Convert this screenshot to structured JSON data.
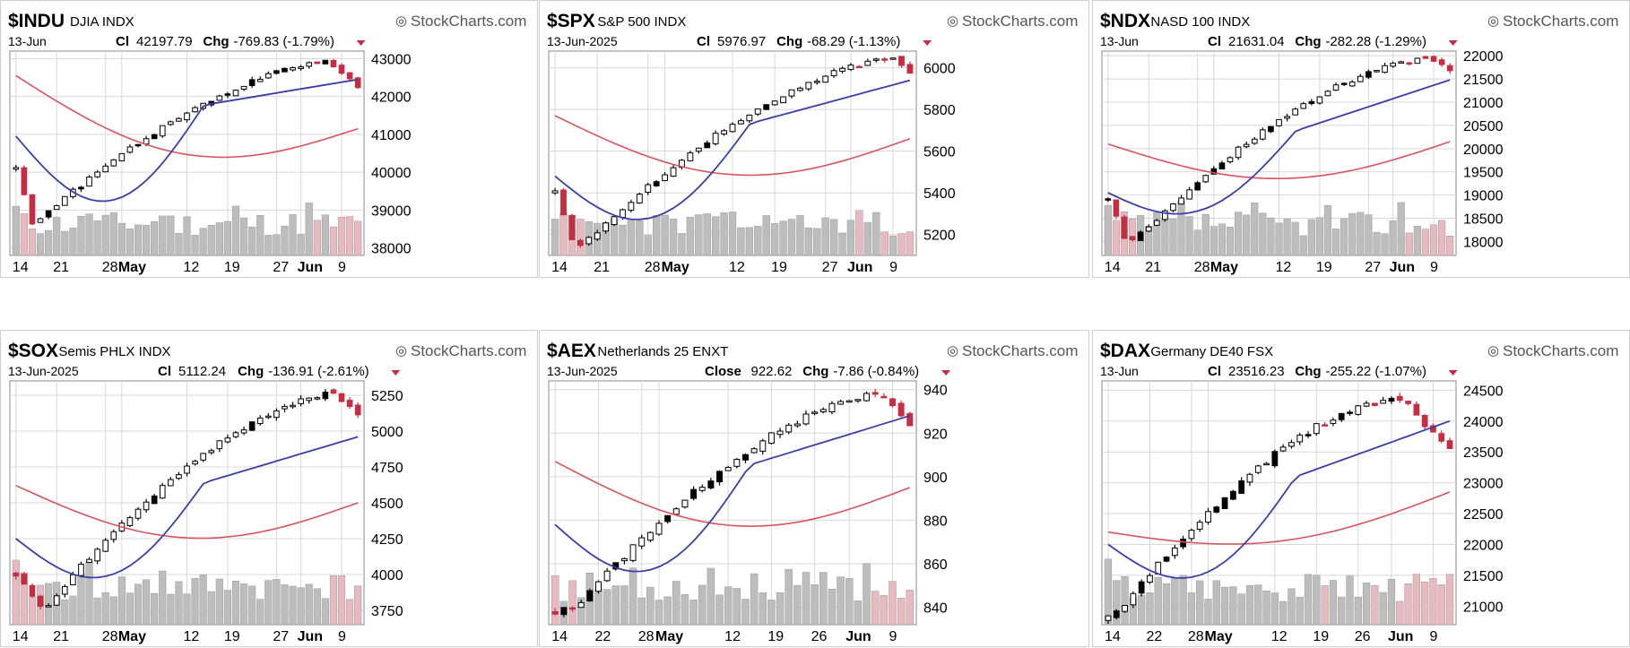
{
  "watermark": "StockCharts.com",
  "colors": {
    "up": "#ffffff",
    "up_stroke": "#000000",
    "down": "#c62d42",
    "flat": "#000000",
    "ma_short": "#3a3fa8",
    "ma_long": "#d9535f",
    "vol_gray": "#bdbdbd",
    "vol_red": "#e8b9bf",
    "grid": "#d8d8d8",
    "chg_arrow": "#c62d42"
  },
  "chart_data": [
    {
      "type": "candlestick",
      "symbol": "$INDU",
      "name": "DJIA",
      "exchange": "INDX",
      "date": "13-Jun",
      "close_label": "Cl",
      "close": "42197.79",
      "chg_label": "Chg",
      "chg": "-769.83 (-1.79%)",
      "y_ticks": [
        "43000",
        "42000",
        "41000",
        "40000",
        "39000",
        "38000"
      ],
      "ylim": [
        37800,
        43200
      ],
      "x_ticks": [
        {
          "label": "14",
          "bold": false
        },
        {
          "label": "21",
          "bold": false
        },
        {
          "label": "28",
          "bold": false
        },
        {
          "label": "May",
          "bold": true
        },
        {
          "label": "12",
          "bold": false
        },
        {
          "label": "19",
          "bold": false
        },
        {
          "label": "27",
          "bold": false
        },
        {
          "label": "Jun",
          "bold": true
        },
        {
          "label": "9",
          "bold": false
        }
      ],
      "x_tick_index": [
        0,
        5,
        11,
        13,
        21,
        26,
        32,
        35,
        40
      ],
      "start": 40100,
      "end": 42200,
      "peak": 42900,
      "peak_frac": 0.92,
      "low": 38600,
      "low_frac": 0.05,
      "ma_short": [
        40950,
        42450
      ],
      "ma_long": [
        42550,
        41150
      ]
    },
    {
      "type": "candlestick",
      "symbol": "$SPX",
      "name": "S&P 500",
      "exchange": "INDX",
      "date": "13-Jun-2025",
      "close_label": "Cl",
      "close": "5976.97",
      "chg_label": "Chg",
      "chg": "-68.29 (-1.13%)",
      "y_ticks": [
        "6000",
        "5800",
        "5600",
        "5400",
        "5200"
      ],
      "ylim": [
        5100,
        6080
      ],
      "x_ticks": [
        {
          "label": "14",
          "bold": false
        },
        {
          "label": "21",
          "bold": false
        },
        {
          "label": "28",
          "bold": false
        },
        {
          "label": "May",
          "bold": true
        },
        {
          "label": "12",
          "bold": false
        },
        {
          "label": "19",
          "bold": false
        },
        {
          "label": "27",
          "bold": false
        },
        {
          "label": "Jun",
          "bold": true
        },
        {
          "label": "9",
          "bold": false
        }
      ],
      "x_tick_index": [
        0,
        5,
        11,
        13,
        21,
        26,
        32,
        35,
        40
      ],
      "start": 5400,
      "end": 5977,
      "peak": 6040,
      "peak_frac": 0.95,
      "low": 5120,
      "low_frac": 0.06,
      "ma_short": [
        5480,
        5940
      ],
      "ma_long": [
        5770,
        5660
      ]
    },
    {
      "type": "candlestick",
      "symbol": "$NDX",
      "name": "NASD 100",
      "exchange": "INDX",
      "date": "13-Jun",
      "close_label": "Cl",
      "close": "21631.04",
      "chg_label": "Chg",
      "chg": "-282.28 (-1.29%)",
      "y_ticks": [
        "22000",
        "21500",
        "21000",
        "20500",
        "20000",
        "19500",
        "19000",
        "18500",
        "18000"
      ],
      "ylim": [
        17700,
        22100
      ],
      "x_ticks": [
        {
          "label": "14",
          "bold": false
        },
        {
          "label": "21",
          "bold": false
        },
        {
          "label": "28",
          "bold": false
        },
        {
          "label": "May",
          "bold": true
        },
        {
          "label": "12",
          "bold": false
        },
        {
          "label": "19",
          "bold": false
        },
        {
          "label": "27",
          "bold": false
        },
        {
          "label": "Jun",
          "bold": true
        },
        {
          "label": "9",
          "bold": false
        }
      ],
      "x_tick_index": [
        0,
        5,
        11,
        13,
        21,
        26,
        32,
        35,
        40
      ],
      "start": 18900,
      "end": 21631,
      "peak": 21950,
      "peak_frac": 0.94,
      "low": 17900,
      "low_frac": 0.06,
      "ma_short": [
        19050,
        21480
      ],
      "ma_long": [
        20100,
        20150
      ]
    },
    {
      "type": "candlestick",
      "symbol": "$SOX",
      "name": "Semis PHLX",
      "exchange": "INDX",
      "date": "13-Jun-2025",
      "close_label": "Cl",
      "close": "5112.24",
      "chg_label": "Chg",
      "chg": "-136.91 (-2.61%)",
      "y_ticks": [
        "5250",
        "5000",
        "4750",
        "4500",
        "4250",
        "4000",
        "3750"
      ],
      "ylim": [
        3650,
        5350
      ],
      "x_ticks": [
        {
          "label": "14",
          "bold": false
        },
        {
          "label": "21",
          "bold": false
        },
        {
          "label": "28",
          "bold": false
        },
        {
          "label": "May",
          "bold": true
        },
        {
          "label": "12",
          "bold": false
        },
        {
          "label": "19",
          "bold": false
        },
        {
          "label": "27",
          "bold": false
        },
        {
          "label": "Jun",
          "bold": true
        },
        {
          "label": "9",
          "bold": false
        }
      ],
      "x_tick_index": [
        0,
        5,
        11,
        13,
        21,
        26,
        32,
        35,
        40
      ],
      "start": 4000,
      "end": 5112,
      "peak": 5260,
      "peak_frac": 0.93,
      "low": 3750,
      "low_frac": 0.08,
      "ma_short": [
        4250,
        4960
      ],
      "ma_long": [
        4620,
        4500
      ]
    },
    {
      "type": "candlestick",
      "symbol": "$AEX",
      "name": "Netherlands 25",
      "exchange": "ENXT",
      "date": "13-Jun-2025",
      "close_label": "Close",
      "close": "922.62",
      "chg_label": "Chg",
      "chg": "-7.86 (-0.84%)",
      "y_ticks": [
        "940",
        "920",
        "900",
        "880",
        "860",
        "840"
      ],
      "ylim": [
        832,
        944
      ],
      "x_ticks": [
        {
          "label": "14",
          "bold": false
        },
        {
          "label": "22",
          "bold": false
        },
        {
          "label": "28",
          "bold": false
        },
        {
          "label": "May",
          "bold": true
        },
        {
          "label": "12",
          "bold": false
        },
        {
          "label": "19",
          "bold": false
        },
        {
          "label": "26",
          "bold": false
        },
        {
          "label": "Jun",
          "bold": true
        },
        {
          "label": "9",
          "bold": false
        }
      ],
      "x_tick_index": [
        0,
        5,
        10,
        12,
        20,
        25,
        30,
        34,
        39
      ],
      "start": 838,
      "end": 922.62,
      "peak": 938,
      "peak_frac": 0.92,
      "low": 840,
      "low_frac": 0.06,
      "ma_short": [
        878,
        928
      ],
      "ma_long": [
        907,
        895
      ]
    },
    {
      "type": "candlestick",
      "symbol": "$DAX",
      "name": "Germany DE40",
      "exchange": "FSX",
      "date": "13-Jun",
      "close_label": "Cl",
      "close": "23516.23",
      "chg_label": "Chg",
      "chg": "-255.22 (-1.07%)",
      "y_ticks": [
        "24500",
        "24000",
        "23500",
        "23000",
        "22500",
        "22000",
        "21500",
        "21000"
      ],
      "ylim": [
        20700,
        24650
      ],
      "x_ticks": [
        {
          "label": "14",
          "bold": false
        },
        {
          "label": "22",
          "bold": false
        },
        {
          "label": "28",
          "bold": false
        },
        {
          "label": "May",
          "bold": true
        },
        {
          "label": "12",
          "bold": false
        },
        {
          "label": "19",
          "bold": false
        },
        {
          "label": "26",
          "bold": false
        },
        {
          "label": "Jun",
          "bold": true
        },
        {
          "label": "9",
          "bold": false
        }
      ],
      "x_tick_index": [
        0,
        5,
        10,
        12,
        20,
        25,
        30,
        34,
        39
      ],
      "start": 20800,
      "end": 23516,
      "peak": 24400,
      "peak_frac": 0.85,
      "low": 20850,
      "low_frac": 0.02,
      "ma_short": [
        22000,
        24000
      ],
      "ma_long": [
        22200,
        22850
      ]
    }
  ]
}
